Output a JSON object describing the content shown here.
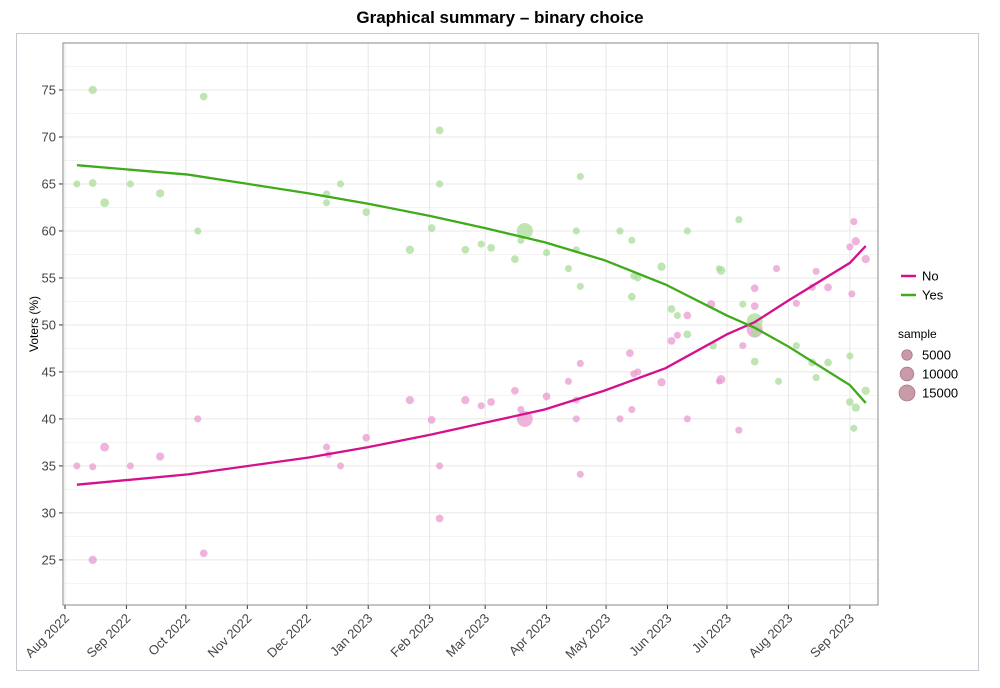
{
  "chart_data": {
    "type": "scatter",
    "title": "Graphical summary – binary choice",
    "xlabel": "",
    "ylabel": "Voters (%)",
    "x_units": "days since 2022-08-01",
    "xlim": [
      -1,
      410.2
    ],
    "ylim": [
      20.2,
      80
    ],
    "yticks": [
      25,
      30,
      35,
      40,
      45,
      50,
      55,
      60,
      65,
      70,
      75
    ],
    "xticks": [
      {
        "day": 0,
        "label": "Aug 2022"
      },
      {
        "day": 31,
        "label": "Sep 2022"
      },
      {
        "day": 61,
        "label": "Oct 2022"
      },
      {
        "day": 92,
        "label": "Nov 2022"
      },
      {
        "day": 122,
        "label": "Dec 2022"
      },
      {
        "day": 153,
        "label": "Jan 2023"
      },
      {
        "day": 184,
        "label": "Feb 2023"
      },
      {
        "day": 212,
        "label": "Mar 2023"
      },
      {
        "day": 243,
        "label": "Apr 2023"
      },
      {
        "day": 273,
        "label": "May 2023"
      },
      {
        "day": 304,
        "label": "Jun 2023"
      },
      {
        "day": 334,
        "label": "Jul 2023"
      },
      {
        "day": 365,
        "label": "Aug 2023"
      },
      {
        "day": 396,
        "label": "Sep 2023"
      }
    ],
    "grid": true,
    "legend_placement": "right",
    "color_legend_title": "",
    "size_legend_title": "sample",
    "size_legend": [
      5000,
      10000,
      15000
    ],
    "series": [
      {
        "name": "No",
        "color": "#d4108c",
        "point_color": "#e99bd0",
        "points": [
          [
            6,
            35,
            1500
          ],
          [
            14,
            34.9,
            1500
          ],
          [
            14,
            25,
            2500
          ],
          [
            20,
            37,
            3000
          ],
          [
            33,
            35,
            1500
          ],
          [
            48,
            36,
            2500
          ],
          [
            67,
            40,
            1500
          ],
          [
            70,
            25.7,
            2000
          ],
          [
            132,
            37,
            1500
          ],
          [
            133,
            36.2,
            1500
          ],
          [
            139,
            35,
            1500
          ],
          [
            152,
            38,
            2000
          ],
          [
            174,
            42,
            2500
          ],
          [
            185,
            39.9,
            2000
          ],
          [
            189,
            35,
            1500
          ],
          [
            189,
            29.4,
            2000
          ],
          [
            202,
            42,
            2500
          ],
          [
            210,
            41.4,
            1500
          ],
          [
            215,
            41.8,
            2000
          ],
          [
            227,
            43,
            2000
          ],
          [
            230,
            41,
            1500
          ],
          [
            232,
            40,
            15000
          ],
          [
            243,
            42.4,
            2000
          ],
          [
            254,
            44,
            1500
          ],
          [
            258,
            42,
            1500
          ],
          [
            258,
            40,
            1500
          ],
          [
            260,
            45.9,
            1500
          ],
          [
            260,
            34.1,
            1500
          ],
          [
            280,
            40,
            1500
          ],
          [
            285,
            47,
            2000
          ],
          [
            286,
            41,
            1500
          ],
          [
            287,
            44.8,
            1500
          ],
          [
            289,
            45,
            1500
          ],
          [
            301,
            43.9,
            2500
          ],
          [
            306,
            48.3,
            2000
          ],
          [
            309,
            48.9,
            1500
          ],
          [
            314,
            51,
            2000
          ],
          [
            314,
            40,
            1500
          ],
          [
            326,
            52.2,
            2500
          ],
          [
            330,
            44,
            1000
          ],
          [
            331,
            44.2,
            3000
          ],
          [
            340,
            38.8,
            1500
          ],
          [
            342,
            47.8,
            1500
          ],
          [
            348,
            53.9,
            2000
          ],
          [
            348,
            52,
            2000
          ],
          [
            348,
            49.5,
            15000
          ],
          [
            359,
            56,
            1500
          ],
          [
            369,
            52.3,
            1500
          ],
          [
            377,
            54,
            1500
          ],
          [
            379,
            55.7,
            1500
          ],
          [
            385,
            54,
            2000
          ],
          [
            396,
            58.3,
            1500
          ],
          [
            397,
            53.3,
            1500
          ],
          [
            398,
            61,
            1500
          ],
          [
            399,
            58.9,
            2500
          ],
          [
            404,
            57,
            2500
          ]
        ],
        "trend": [
          [
            6,
            33.0
          ],
          [
            62,
            34.1
          ],
          [
            123,
            35.9
          ],
          [
            153,
            37.0
          ],
          [
            184,
            38.3
          ],
          [
            212,
            39.6
          ],
          [
            242,
            41.0
          ],
          [
            272,
            43.0
          ],
          [
            303,
            45.4
          ],
          [
            334,
            49.0
          ],
          [
            348,
            50.3
          ],
          [
            365,
            52.6
          ],
          [
            396,
            56.6
          ],
          [
            404,
            58.4
          ]
        ]
      },
      {
        "name": "Yes",
        "color": "#3faa1a",
        "point_color": "#a9dc98",
        "points": [
          [
            6,
            65,
            1500
          ],
          [
            14,
            75,
            2500
          ],
          [
            14,
            65.1,
            2000
          ],
          [
            20,
            63,
            3000
          ],
          [
            33,
            65,
            1500
          ],
          [
            48,
            64,
            2500
          ],
          [
            67,
            60,
            1500
          ],
          [
            70,
            74.3,
            2000
          ],
          [
            132,
            63.9,
            2000
          ],
          [
            132,
            63,
            1500
          ],
          [
            139,
            65,
            1500
          ],
          [
            152,
            62,
            2000
          ],
          [
            174,
            58,
            2500
          ],
          [
            185,
            60.3,
            2000
          ],
          [
            189,
            70.7,
            2000
          ],
          [
            189,
            65,
            1500
          ],
          [
            202,
            58,
            2000
          ],
          [
            210,
            58.6,
            1500
          ],
          [
            215,
            58.2,
            2000
          ],
          [
            227,
            57,
            2000
          ],
          [
            230,
            59,
            1500
          ],
          [
            232,
            60,
            15000
          ],
          [
            243,
            57.7,
            1500
          ],
          [
            254,
            56,
            1500
          ],
          [
            258,
            60,
            1500
          ],
          [
            258,
            58,
            1500
          ],
          [
            260,
            65.8,
            1500
          ],
          [
            260,
            54.1,
            1500
          ],
          [
            280,
            60,
            1500
          ],
          [
            286,
            59,
            1500
          ],
          [
            286,
            53,
            2000
          ],
          [
            287,
            55.2,
            1500
          ],
          [
            289,
            55,
            1500
          ],
          [
            301,
            56.2,
            2500
          ],
          [
            306,
            51.7,
            2000
          ],
          [
            309,
            51,
            1500
          ],
          [
            314,
            60,
            1500
          ],
          [
            314,
            49,
            2000
          ],
          [
            327,
            47.8,
            2000
          ],
          [
            330,
            56,
            1000
          ],
          [
            331,
            55.8,
            3000
          ],
          [
            340,
            61.2,
            1500
          ],
          [
            342,
            52.2,
            1500
          ],
          [
            348,
            50.4,
            15000
          ],
          [
            348,
            49.1,
            2000
          ],
          [
            348,
            46.1,
            2000
          ],
          [
            360,
            44,
            1500
          ],
          [
            369,
            47.8,
            1500
          ],
          [
            377,
            46,
            2000
          ],
          [
            379,
            44.4,
            1500
          ],
          [
            385,
            46,
            2000
          ],
          [
            396,
            46.7,
            1500
          ],
          [
            396,
            41.8,
            2000
          ],
          [
            398,
            39,
            1500
          ],
          [
            399,
            41.2,
            2500
          ],
          [
            404,
            43,
            2500
          ]
        ],
        "trend": [
          [
            6,
            67.0
          ],
          [
            62,
            66.0
          ],
          [
            123,
            64.0
          ],
          [
            153,
            62.9
          ],
          [
            184,
            61.6
          ],
          [
            212,
            60.3
          ],
          [
            242,
            58.8
          ],
          [
            272,
            56.9
          ],
          [
            303,
            54.3
          ],
          [
            334,
            51.0
          ],
          [
            348,
            49.7
          ],
          [
            365,
            47.7
          ],
          [
            396,
            43.6
          ],
          [
            404,
            41.7
          ]
        ]
      }
    ]
  }
}
